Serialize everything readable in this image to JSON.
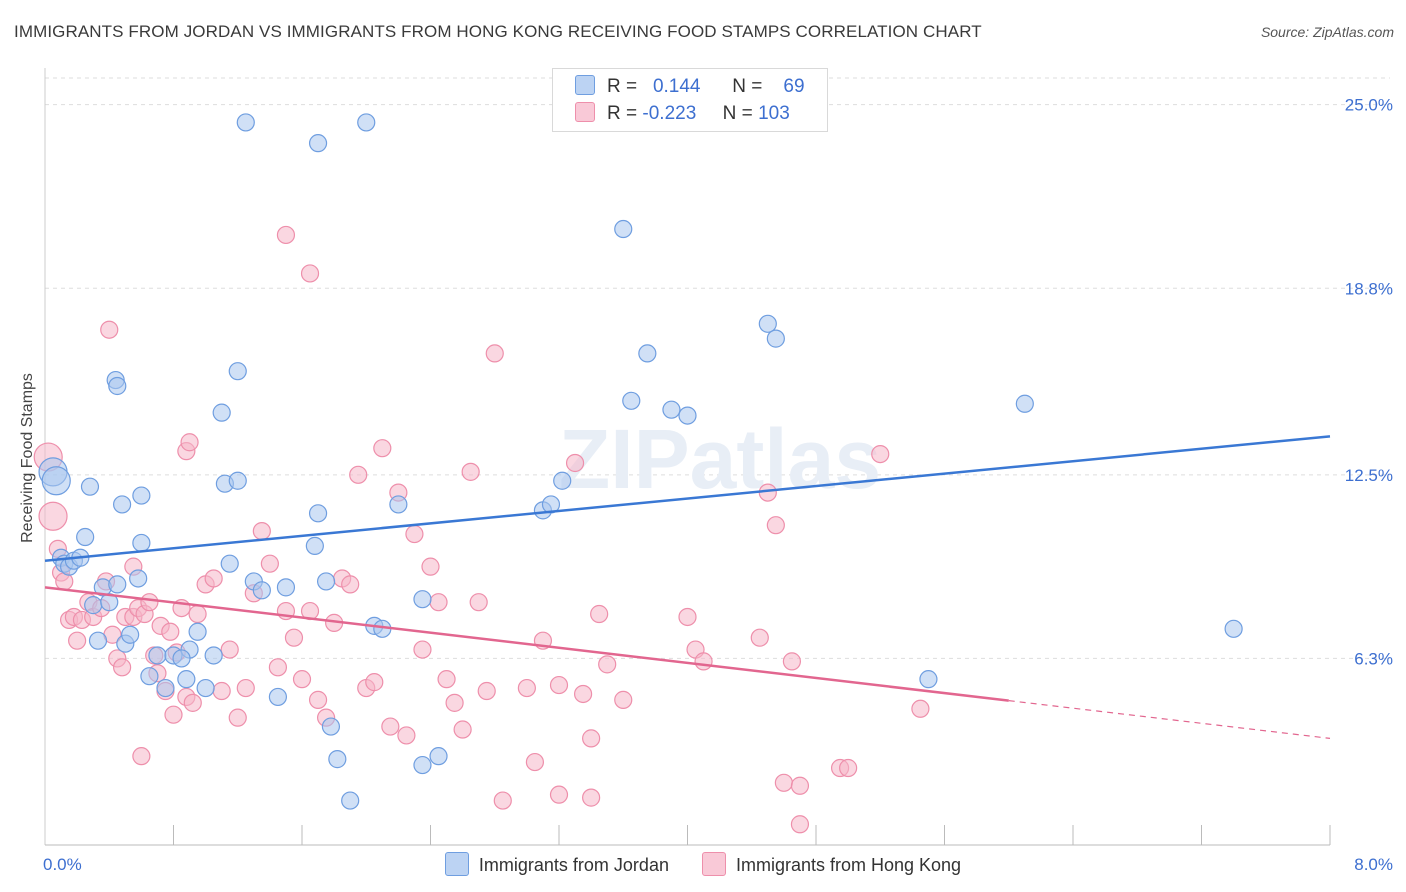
{
  "title": "IMMIGRANTS FROM JORDAN VS IMMIGRANTS FROM HONG KONG RECEIVING FOOD STAMPS CORRELATION CHART",
  "source": "Source: ZipAtlas.com",
  "watermark": "ZIPatlas",
  "colors": {
    "jordan_fill": "#a9c6ef",
    "jordan_stroke": "#6f9ee0",
    "jordan_line": "#3a78d4",
    "hongkong_fill": "#f6b6c9",
    "hongkong_stroke": "#ee8fab",
    "hongkong_line": "#e2668f",
    "tick_label": "#3d6fd0",
    "grid": "#dddddd"
  },
  "legend": {
    "rows": [
      {
        "r_label": "R =",
        "r_value": "0.144",
        "n_label": "N =",
        "n_value": "69"
      },
      {
        "r_label": "R =",
        "r_value": "-0.223",
        "n_label": "N =",
        "n_value": "103"
      }
    ]
  },
  "bottom_legend": [
    "Immigrants from Jordan",
    "Immigrants from Hong Kong"
  ],
  "chart_data": {
    "type": "scatter",
    "title": "IMMIGRANTS FROM JORDAN VS IMMIGRANTS FROM HONG KONG RECEIVING FOOD STAMPS CORRELATION CHART",
    "xlabel": "",
    "ylabel": "Receiving Food Stamps",
    "xlim": [
      0,
      8
    ],
    "ylim": [
      0,
      25.9
    ],
    "x_tick_labels": [
      "0.0%",
      "8.0%"
    ],
    "y_ticks": [
      6.3,
      12.5,
      18.8,
      25.0
    ],
    "y_tick_labels": [
      "6.3%",
      "12.5%",
      "18.8%",
      "25.0%"
    ],
    "grid": true,
    "legend_position": "top-center",
    "series": [
      {
        "name": "Immigrants from Jordan",
        "R": 0.144,
        "N": 69,
        "trend": {
          "x": [
            0,
            8
          ],
          "y": [
            9.6,
            13.8
          ],
          "dashed_from": null
        },
        "points": [
          [
            0.05,
            12.6
          ],
          [
            0.07,
            12.3
          ],
          [
            0.1,
            9.7
          ],
          [
            0.12,
            9.5
          ],
          [
            0.15,
            9.4
          ],
          [
            0.18,
            9.6
          ],
          [
            0.22,
            9.7
          ],
          [
            0.25,
            10.4
          ],
          [
            0.3,
            8.1
          ],
          [
            0.33,
            6.9
          ],
          [
            0.36,
            8.7
          ],
          [
            0.4,
            8.2
          ],
          [
            0.45,
            8.8
          ],
          [
            0.5,
            6.8
          ],
          [
            0.53,
            7.1
          ],
          [
            0.58,
            9.0
          ],
          [
            0.6,
            10.2
          ],
          [
            0.65,
            5.7
          ],
          [
            0.7,
            6.4
          ],
          [
            0.75,
            5.3
          ],
          [
            0.48,
            11.5
          ],
          [
            0.44,
            15.7
          ],
          [
            0.6,
            11.8
          ],
          [
            0.28,
            12.1
          ],
          [
            0.45,
            15.5
          ],
          [
            0.8,
            6.4
          ],
          [
            0.88,
            5.6
          ],
          [
            0.9,
            6.6
          ],
          [
            0.95,
            7.2
          ],
          [
            1.0,
            5.3
          ],
          [
            0.85,
            6.3
          ],
          [
            1.05,
            6.4
          ],
          [
            1.12,
            12.2
          ],
          [
            1.2,
            12.3
          ],
          [
            1.15,
            9.5
          ],
          [
            1.3,
            8.9
          ],
          [
            1.35,
            8.6
          ],
          [
            1.45,
            5.0
          ],
          [
            1.5,
            8.7
          ],
          [
            1.7,
            11.2
          ],
          [
            1.75,
            8.9
          ],
          [
            1.78,
            4.0
          ],
          [
            1.82,
            2.9
          ],
          [
            1.9,
            1.5
          ],
          [
            1.68,
            10.1
          ],
          [
            2.0,
            24.4
          ],
          [
            2.05,
            7.4
          ],
          [
            2.1,
            7.3
          ],
          [
            2.35,
            8.3
          ],
          [
            2.45,
            3.0
          ],
          [
            2.35,
            2.7
          ],
          [
            3.1,
            11.3
          ],
          [
            3.22,
            12.3
          ],
          [
            3.15,
            11.5
          ],
          [
            3.6,
            20.8
          ],
          [
            3.65,
            15.0
          ],
          [
            3.75,
            16.6
          ],
          [
            3.9,
            14.7
          ],
          [
            4.0,
            14.5
          ],
          [
            4.5,
            17.6
          ],
          [
            4.55,
            17.1
          ],
          [
            6.1,
            14.9
          ],
          [
            7.4,
            7.3
          ],
          [
            5.5,
            5.6
          ],
          [
            1.2,
            16.0
          ],
          [
            1.1,
            14.6
          ],
          [
            1.25,
            24.4
          ],
          [
            1.7,
            23.7
          ],
          [
            2.2,
            11.5
          ]
        ]
      },
      {
        "name": "Immigrants from Hong Kong",
        "R": -0.223,
        "N": 103,
        "trend": {
          "x": [
            0,
            8
          ],
          "y": [
            8.7,
            3.6
          ],
          "dashed_from": 6.0
        },
        "points": [
          [
            0.02,
            13.1
          ],
          [
            0.05,
            11.1
          ],
          [
            0.08,
            10.0
          ],
          [
            0.1,
            9.2
          ],
          [
            0.12,
            8.9
          ],
          [
            0.15,
            7.6
          ],
          [
            0.18,
            7.7
          ],
          [
            0.2,
            6.9
          ],
          [
            0.23,
            7.6
          ],
          [
            0.27,
            8.2
          ],
          [
            0.3,
            7.7
          ],
          [
            0.35,
            8.0
          ],
          [
            0.38,
            8.9
          ],
          [
            0.42,
            7.1
          ],
          [
            0.45,
            6.3
          ],
          [
            0.48,
            6.0
          ],
          [
            0.5,
            7.7
          ],
          [
            0.55,
            7.7
          ],
          [
            0.58,
            8.0
          ],
          [
            0.62,
            7.8
          ],
          [
            0.65,
            8.2
          ],
          [
            0.68,
            6.4
          ],
          [
            0.7,
            5.8
          ],
          [
            0.72,
            7.4
          ],
          [
            0.75,
            5.2
          ],
          [
            0.78,
            7.2
          ],
          [
            0.8,
            4.4
          ],
          [
            0.82,
            6.5
          ],
          [
            0.85,
            8.0
          ],
          [
            0.88,
            5.0
          ],
          [
            0.92,
            4.8
          ],
          [
            0.95,
            7.8
          ],
          [
            1.0,
            8.8
          ],
          [
            1.05,
            9.0
          ],
          [
            1.1,
            5.2
          ],
          [
            1.15,
            6.6
          ],
          [
            1.2,
            4.3
          ],
          [
            1.25,
            5.3
          ],
          [
            1.3,
            8.5
          ],
          [
            1.35,
            10.6
          ],
          [
            1.4,
            9.5
          ],
          [
            1.45,
            6.0
          ],
          [
            1.5,
            7.9
          ],
          [
            1.55,
            7.0
          ],
          [
            1.6,
            5.6
          ],
          [
            1.65,
            7.9
          ],
          [
            1.7,
            4.9
          ],
          [
            1.75,
            4.3
          ],
          [
            1.8,
            7.5
          ],
          [
            1.85,
            9.0
          ],
          [
            1.9,
            8.8
          ],
          [
            1.95,
            12.5
          ],
          [
            2.0,
            5.3
          ],
          [
            2.05,
            5.5
          ],
          [
            2.1,
            13.4
          ],
          [
            2.15,
            4.0
          ],
          [
            2.2,
            11.9
          ],
          [
            2.25,
            3.7
          ],
          [
            2.3,
            10.5
          ],
          [
            2.35,
            6.6
          ],
          [
            2.4,
            9.4
          ],
          [
            2.45,
            8.2
          ],
          [
            2.5,
            5.6
          ],
          [
            2.55,
            4.8
          ],
          [
            2.6,
            3.9
          ],
          [
            2.65,
            12.6
          ],
          [
            2.7,
            8.2
          ],
          [
            2.75,
            5.2
          ],
          [
            2.8,
            16.6
          ],
          [
            2.85,
            1.5
          ],
          [
            3.0,
            5.3
          ],
          [
            3.05,
            2.8
          ],
          [
            3.1,
            6.9
          ],
          [
            3.2,
            5.4
          ],
          [
            3.3,
            12.9
          ],
          [
            3.35,
            5.1
          ],
          [
            3.4,
            3.6
          ],
          [
            3.45,
            7.8
          ],
          [
            3.5,
            6.1
          ],
          [
            3.6,
            4.9
          ],
          [
            4.0,
            7.7
          ],
          [
            4.05,
            6.6
          ],
          [
            4.1,
            6.2
          ],
          [
            4.45,
            7.0
          ],
          [
            4.5,
            11.9
          ],
          [
            4.55,
            10.8
          ],
          [
            4.6,
            2.1
          ],
          [
            4.7,
            0.7
          ],
          [
            4.95,
            2.6
          ],
          [
            5.0,
            2.6
          ],
          [
            5.2,
            13.2
          ],
          [
            1.5,
            20.6
          ],
          [
            1.65,
            19.3
          ],
          [
            0.4,
            17.4
          ],
          [
            0.88,
            13.3
          ],
          [
            0.9,
            13.6
          ],
          [
            0.55,
            9.4
          ],
          [
            0.6,
            3.0
          ],
          [
            3.2,
            1.7
          ],
          [
            3.4,
            1.6
          ],
          [
            5.45,
            4.6
          ],
          [
            4.65,
            6.2
          ],
          [
            4.7,
            2.0
          ]
        ]
      }
    ]
  }
}
